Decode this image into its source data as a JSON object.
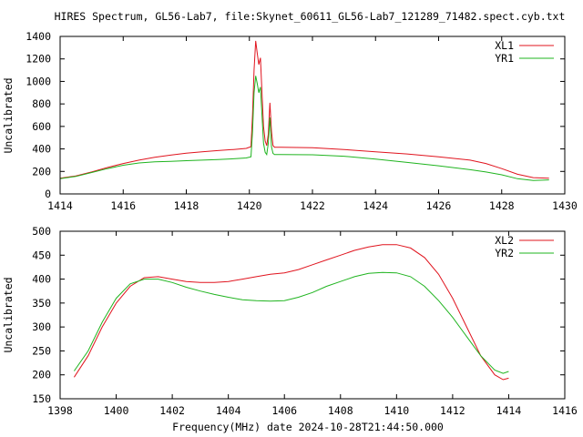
{
  "title": "HIRES Spectrum, GL56-Lab7, file:Skynet_60611_GL56-Lab7_121289_71482.spect.cyb.txt",
  "xlabel_bottom": "Frequency(MHz) date 2024-10-28T21:44:50.000",
  "colors": {
    "red": "#e0141e",
    "green": "#1fb41f"
  },
  "chart_data": [
    {
      "type": "line",
      "ylabel": "Uncalibrated",
      "xlim": [
        1414,
        1430
      ],
      "ylim": [
        0,
        1400
      ],
      "xticks": [
        "1414",
        "1416",
        "1418",
        "1420",
        "1422",
        "1424",
        "1426",
        "1428",
        "1430"
      ],
      "yticks": [
        "0",
        "200",
        "400",
        "600",
        "800",
        "1000",
        "1200",
        "1400"
      ],
      "legend_position": "top-right",
      "series": [
        {
          "name": "XL1",
          "color": "#e0141e",
          "points": [
            [
              1414.0,
              140
            ],
            [
              1414.5,
              160
            ],
            [
              1415.0,
              195
            ],
            [
              1415.5,
              235
            ],
            [
              1416.0,
              270
            ],
            [
              1416.5,
              300
            ],
            [
              1417.0,
              325
            ],
            [
              1417.5,
              345
            ],
            [
              1418.0,
              362
            ],
            [
              1418.5,
              375
            ],
            [
              1419.0,
              385
            ],
            [
              1419.5,
              395
            ],
            [
              1419.9,
              405
            ],
            [
              1420.05,
              420
            ],
            [
              1420.1,
              700
            ],
            [
              1420.15,
              1100
            ],
            [
              1420.2,
              1360
            ],
            [
              1420.25,
              1250
            ],
            [
              1420.3,
              1150
            ],
            [
              1420.35,
              1210
            ],
            [
              1420.4,
              900
            ],
            [
              1420.45,
              600
            ],
            [
              1420.5,
              470
            ],
            [
              1420.55,
              430
            ],
            [
              1420.6,
              530
            ],
            [
              1420.65,
              810
            ],
            [
              1420.7,
              560
            ],
            [
              1420.75,
              430
            ],
            [
              1420.8,
              415
            ],
            [
              1421.0,
              415
            ],
            [
              1422.0,
              410
            ],
            [
              1423.0,
              395
            ],
            [
              1424.0,
              375
            ],
            [
              1425.0,
              355
            ],
            [
              1426.0,
              330
            ],
            [
              1427.0,
              300
            ],
            [
              1427.5,
              270
            ],
            [
              1428.0,
              225
            ],
            [
              1428.5,
              175
            ],
            [
              1429.0,
              145
            ],
            [
              1429.5,
              140
            ]
          ]
        },
        {
          "name": "YR1",
          "color": "#1fb41f",
          "points": [
            [
              1414.0,
              135
            ],
            [
              1414.5,
              155
            ],
            [
              1415.0,
              190
            ],
            [
              1415.5,
              225
            ],
            [
              1416.0,
              255
            ],
            [
              1416.5,
              275
            ],
            [
              1417.0,
              285
            ],
            [
              1417.5,
              290
            ],
            [
              1418.0,
              295
            ],
            [
              1418.5,
              300
            ],
            [
              1419.0,
              305
            ],
            [
              1419.5,
              312
            ],
            [
              1419.9,
              320
            ],
            [
              1420.05,
              330
            ],
            [
              1420.1,
              550
            ],
            [
              1420.15,
              900
            ],
            [
              1420.2,
              1050
            ],
            [
              1420.25,
              980
            ],
            [
              1420.3,
              900
            ],
            [
              1420.35,
              950
            ],
            [
              1420.4,
              700
            ],
            [
              1420.45,
              450
            ],
            [
              1420.5,
              370
            ],
            [
              1420.55,
              350
            ],
            [
              1420.6,
              450
            ],
            [
              1420.65,
              680
            ],
            [
              1420.7,
              420
            ],
            [
              1420.75,
              360
            ],
            [
              1420.8,
              350
            ],
            [
              1421.0,
              350
            ],
            [
              1422.0,
              348
            ],
            [
              1423.0,
              335
            ],
            [
              1424.0,
              310
            ],
            [
              1425.0,
              280
            ],
            [
              1426.0,
              250
            ],
            [
              1427.0,
              215
            ],
            [
              1427.5,
              195
            ],
            [
              1428.0,
              170
            ],
            [
              1428.5,
              135
            ],
            [
              1429.0,
              120
            ],
            [
              1429.5,
              125
            ]
          ]
        }
      ]
    },
    {
      "type": "line",
      "ylabel": "Uncalibrated",
      "xlim": [
        1398,
        1416
      ],
      "ylim": [
        150,
        500
      ],
      "xticks": [
        "1398",
        "1400",
        "1402",
        "1404",
        "1406",
        "1408",
        "1410",
        "1412",
        "1414",
        "1416"
      ],
      "yticks": [
        "150",
        "200",
        "250",
        "300",
        "350",
        "400",
        "450",
        "500"
      ],
      "legend_position": "top-right",
      "series": [
        {
          "name": "XL2",
          "color": "#e0141e",
          "points": [
            [
              1398.5,
              195
            ],
            [
              1399.0,
              240
            ],
            [
              1399.5,
              300
            ],
            [
              1400.0,
              350
            ],
            [
              1400.5,
              385
            ],
            [
              1401.0,
              403
            ],
            [
              1401.5,
              405
            ],
            [
              1402.0,
              400
            ],
            [
              1402.5,
              395
            ],
            [
              1403.0,
              393
            ],
            [
              1403.5,
              393
            ],
            [
              1404.0,
              395
            ],
            [
              1404.5,
              400
            ],
            [
              1405.0,
              405
            ],
            [
              1405.5,
              410
            ],
            [
              1406.0,
              413
            ],
            [
              1406.5,
              420
            ],
            [
              1407.0,
              430
            ],
            [
              1407.5,
              440
            ],
            [
              1408.0,
              450
            ],
            [
              1408.5,
              460
            ],
            [
              1409.0,
              467
            ],
            [
              1409.5,
              472
            ],
            [
              1410.0,
              472
            ],
            [
              1410.5,
              465
            ],
            [
              1411.0,
              445
            ],
            [
              1411.5,
              410
            ],
            [
              1412.0,
              360
            ],
            [
              1412.5,
              300
            ],
            [
              1413.0,
              240
            ],
            [
              1413.5,
              200
            ],
            [
              1413.8,
              190
            ],
            [
              1414.0,
              193
            ]
          ]
        },
        {
          "name": "YR2",
          "color": "#1fb41f",
          "points": [
            [
              1398.5,
              208
            ],
            [
              1399.0,
              250
            ],
            [
              1399.5,
              310
            ],
            [
              1400.0,
              360
            ],
            [
              1400.5,
              390
            ],
            [
              1401.0,
              400
            ],
            [
              1401.5,
              400
            ],
            [
              1402.0,
              393
            ],
            [
              1402.5,
              383
            ],
            [
              1403.0,
              375
            ],
            [
              1403.5,
              368
            ],
            [
              1404.0,
              362
            ],
            [
              1404.5,
              357
            ],
            [
              1405.0,
              355
            ],
            [
              1405.5,
              354
            ],
            [
              1406.0,
              355
            ],
            [
              1406.5,
              362
            ],
            [
              1407.0,
              372
            ],
            [
              1407.5,
              385
            ],
            [
              1408.0,
              395
            ],
            [
              1408.5,
              405
            ],
            [
              1409.0,
              412
            ],
            [
              1409.5,
              414
            ],
            [
              1410.0,
              413
            ],
            [
              1410.5,
              405
            ],
            [
              1411.0,
              385
            ],
            [
              1411.5,
              355
            ],
            [
              1412.0,
              320
            ],
            [
              1412.5,
              280
            ],
            [
              1413.0,
              240
            ],
            [
              1413.5,
              210
            ],
            [
              1413.8,
              203
            ],
            [
              1414.0,
              207
            ]
          ]
        }
      ]
    }
  ]
}
